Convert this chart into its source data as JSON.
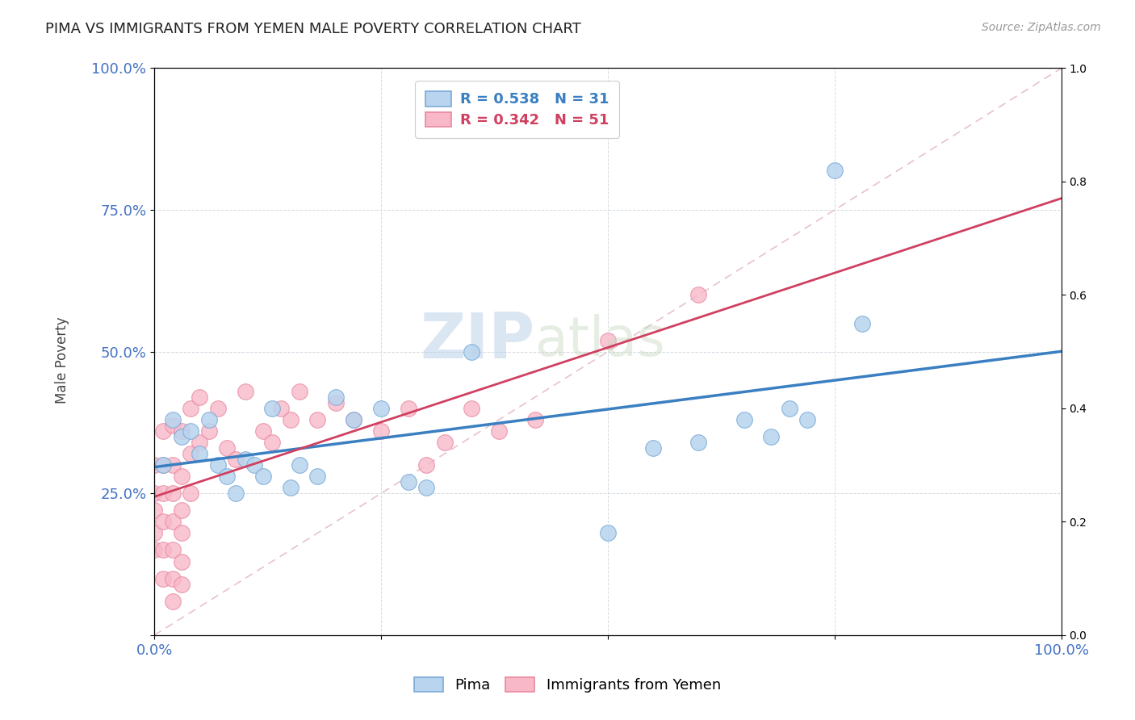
{
  "title": "PIMA VS IMMIGRANTS FROM YEMEN MALE POVERTY CORRELATION CHART",
  "source": "Source: ZipAtlas.com",
  "ylabel": "Male Poverty",
  "xlim": [
    0.0,
    1.0
  ],
  "ylim": [
    0.0,
    1.0
  ],
  "xticks": [
    0.0,
    0.25,
    0.5,
    0.75,
    1.0
  ],
  "yticks": [
    0.0,
    0.25,
    0.5,
    0.75,
    1.0
  ],
  "xticklabels": [
    "0.0%",
    "",
    "",
    "",
    "100.0%"
  ],
  "yticklabels": [
    "",
    "25.0%",
    "50.0%",
    "75.0%",
    "100.0%"
  ],
  "grid_color": "#d0d8e0",
  "background_color": "#ffffff",
  "watermark_zip": "ZIP",
  "watermark_atlas": "atlas",
  "legend_r1": "R = 0.538",
  "legend_n1": "N = 31",
  "legend_r2": "R = 0.342",
  "legend_n2": "N = 51",
  "pima_color": "#b8d4ee",
  "yemen_color": "#f8b8c8",
  "pima_edge_color": "#7aaad8",
  "yemen_edge_color": "#e888a0",
  "pima_line_color": "#3a7fc1",
  "yemen_line_color": "#d04060",
  "ref_line_color": "#dda8b8",
  "pima_scatter": [
    [
      0.01,
      0.3
    ],
    [
      0.02,
      0.38
    ],
    [
      0.03,
      0.35
    ],
    [
      0.04,
      0.36
    ],
    [
      0.05,
      0.32
    ],
    [
      0.06,
      0.38
    ],
    [
      0.07,
      0.3
    ],
    [
      0.08,
      0.28
    ],
    [
      0.09,
      0.25
    ],
    [
      0.1,
      0.31
    ],
    [
      0.11,
      0.3
    ],
    [
      0.12,
      0.28
    ],
    [
      0.13,
      0.4
    ],
    [
      0.15,
      0.26
    ],
    [
      0.16,
      0.3
    ],
    [
      0.18,
      0.28
    ],
    [
      0.2,
      0.42
    ],
    [
      0.22,
      0.38
    ],
    [
      0.25,
      0.4
    ],
    [
      0.28,
      0.27
    ],
    [
      0.3,
      0.26
    ],
    [
      0.35,
      0.5
    ],
    [
      0.5,
      0.18
    ],
    [
      0.55,
      0.33
    ],
    [
      0.6,
      0.34
    ],
    [
      0.65,
      0.38
    ],
    [
      0.68,
      0.35
    ],
    [
      0.7,
      0.4
    ],
    [
      0.72,
      0.38
    ],
    [
      0.75,
      0.82
    ],
    [
      0.78,
      0.55
    ]
  ],
  "yemen_scatter": [
    [
      0.0,
      0.3
    ],
    [
      0.0,
      0.25
    ],
    [
      0.0,
      0.22
    ],
    [
      0.0,
      0.18
    ],
    [
      0.0,
      0.15
    ],
    [
      0.01,
      0.36
    ],
    [
      0.01,
      0.3
    ],
    [
      0.01,
      0.25
    ],
    [
      0.01,
      0.2
    ],
    [
      0.01,
      0.15
    ],
    [
      0.01,
      0.1
    ],
    [
      0.02,
      0.37
    ],
    [
      0.02,
      0.3
    ],
    [
      0.02,
      0.25
    ],
    [
      0.02,
      0.2
    ],
    [
      0.02,
      0.15
    ],
    [
      0.02,
      0.1
    ],
    [
      0.02,
      0.06
    ],
    [
      0.03,
      0.36
    ],
    [
      0.03,
      0.28
    ],
    [
      0.03,
      0.22
    ],
    [
      0.03,
      0.18
    ],
    [
      0.03,
      0.13
    ],
    [
      0.03,
      0.09
    ],
    [
      0.04,
      0.4
    ],
    [
      0.04,
      0.32
    ],
    [
      0.04,
      0.25
    ],
    [
      0.05,
      0.42
    ],
    [
      0.05,
      0.34
    ],
    [
      0.06,
      0.36
    ],
    [
      0.07,
      0.4
    ],
    [
      0.08,
      0.33
    ],
    [
      0.09,
      0.31
    ],
    [
      0.1,
      0.43
    ],
    [
      0.12,
      0.36
    ],
    [
      0.13,
      0.34
    ],
    [
      0.14,
      0.4
    ],
    [
      0.15,
      0.38
    ],
    [
      0.16,
      0.43
    ],
    [
      0.18,
      0.38
    ],
    [
      0.2,
      0.41
    ],
    [
      0.22,
      0.38
    ],
    [
      0.25,
      0.36
    ],
    [
      0.28,
      0.4
    ],
    [
      0.3,
      0.3
    ],
    [
      0.32,
      0.34
    ],
    [
      0.35,
      0.4
    ],
    [
      0.38,
      0.36
    ],
    [
      0.42,
      0.38
    ],
    [
      0.5,
      0.52
    ],
    [
      0.6,
      0.6
    ]
  ]
}
